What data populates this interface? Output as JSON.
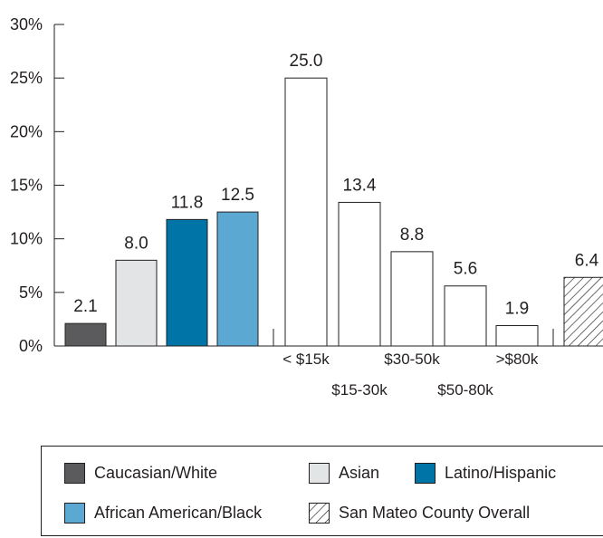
{
  "chart_data": {
    "type": "bar",
    "ylim": [
      0,
      30
    ],
    "yticks": [
      "0%",
      "5%",
      "10%",
      "15%",
      "20%",
      "25%",
      "30%"
    ],
    "groups": {
      "ethnicity": [
        {
          "label": "Caucasian/White",
          "value": 2.1,
          "value_label": "2.1",
          "color": "#5b5b5d"
        },
        {
          "label": "Asian",
          "value": 8.0,
          "value_label": "8.0",
          "color": "#e3e4e5"
        },
        {
          "label": "Latino/Hispanic",
          "value": 11.8,
          "value_label": "11.8",
          "color": "#0073a7"
        },
        {
          "label": "African American/Black",
          "value": 12.5,
          "value_label": "12.5",
          "color": "#5ba8d3"
        }
      ],
      "income": [
        {
          "label": "< $15k",
          "value": 25.0,
          "value_label": "25.0"
        },
        {
          "label": "$15-30k",
          "value": 13.4,
          "value_label": "13.4"
        },
        {
          "label": "$30-50k",
          "value": 8.8,
          "value_label": "8.8"
        },
        {
          "label": "$50-80k",
          "value": 5.6,
          "value_label": "5.6"
        },
        {
          "label": ">$80k",
          "value": 1.9,
          "value_label": "1.9"
        }
      ],
      "overall": [
        {
          "label": "San Mateo County Overall",
          "value": 6.4,
          "value_label": "6.4",
          "pattern": "hatched"
        }
      ]
    }
  },
  "legend": {
    "items": [
      {
        "label": "Caucasian/White",
        "color": "#5b5b5d"
      },
      {
        "label": "Asian",
        "color": "#e3e4e5"
      },
      {
        "label": "Latino/Hispanic",
        "color": "#0073a7"
      },
      {
        "label": "African American/Black",
        "color": "#5ba8d3"
      },
      {
        "label": "San Mateo County Overall",
        "pattern": "hatched"
      }
    ]
  }
}
